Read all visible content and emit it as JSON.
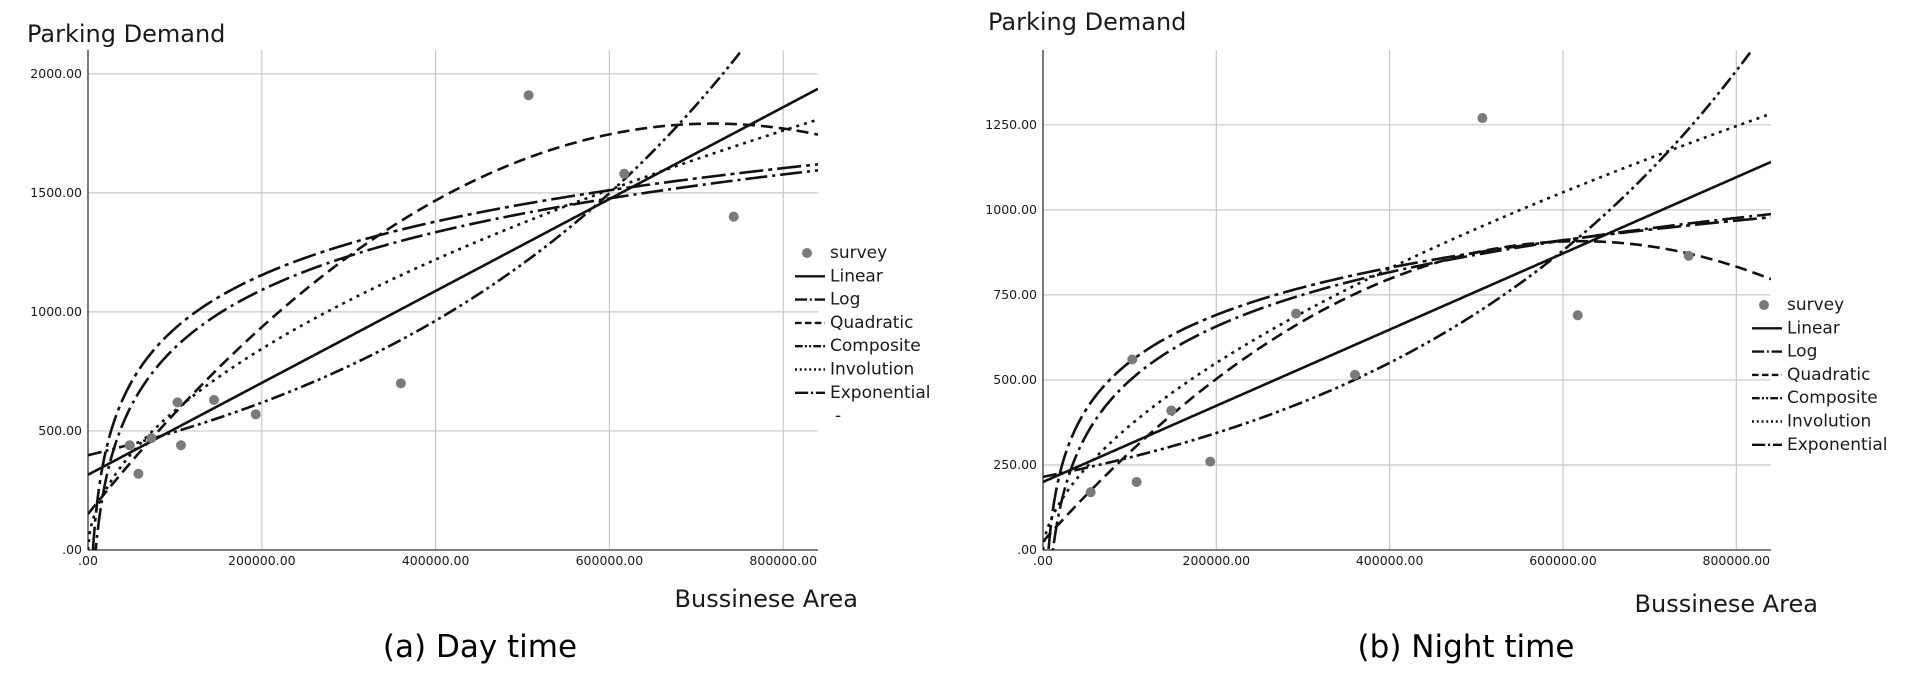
{
  "chart_data": [
    {
      "type": "scatter",
      "caption": "(a) Day time",
      "xlabel": "Bussinese Area",
      "ylabel": "Parking Demand",
      "xlim": [
        0,
        840000
      ],
      "ylim": [
        0,
        2100
      ],
      "xticks": [
        0,
        200000,
        400000,
        600000,
        800000
      ],
      "xtick_labels": [
        ".00",
        "200000.00",
        "400000.00",
        "600000.00",
        "800000.00"
      ],
      "yticks": [
        0,
        500,
        1000,
        1500,
        2000
      ],
      "ytick_labels": [
        ".00",
        "500.00",
        "1000.00",
        "1500.00",
        "2000.00"
      ],
      "grid": true,
      "legend_position": "right",
      "legend_trailing_mark": "-",
      "legend": [
        "survey",
        "Linear",
        "Log",
        "Quadratic",
        "Composite",
        "Involution",
        "Exponential"
      ],
      "survey_points": [
        {
          "x": 48000,
          "y": 440
        },
        {
          "x": 58000,
          "y": 320
        },
        {
          "x": 73000,
          "y": 470
        },
        {
          "x": 103000,
          "y": 620
        },
        {
          "x": 107000,
          "y": 440
        },
        {
          "x": 145000,
          "y": 630
        },
        {
          "x": 193000,
          "y": 570
        },
        {
          "x": 360000,
          "y": 700
        },
        {
          "x": 507000,
          "y": 1910
        },
        {
          "x": 617000,
          "y": 1580
        },
        {
          "x": 743000,
          "y": 1400
        }
      ],
      "fits": {
        "linear": {
          "a": 316,
          "b": 0.00193
        },
        "log": {
          "a": -3180,
          "b": 350
        },
        "quadratic": {
          "a": 151,
          "b": 0.00456,
          "c": -3.17e-09
        },
        "composite": {
          "a": 398,
          "b": 2.21e-06
        },
        "involution": {
          "a": 1.31,
          "b": 0.53
        },
        "exponential": {
          "a": -2800,
          "b": 324
        }
      }
    },
    {
      "type": "scatter",
      "caption": "(b) Night time",
      "xlabel": "Bussinese Area",
      "ylabel": "Parking Demand",
      "xlim": [
        0,
        840000
      ],
      "ylim": [
        0,
        1470
      ],
      "xticks": [
        0,
        200000,
        400000,
        600000,
        800000
      ],
      "xtick_labels": [
        ".00",
        "200000.00",
        "400000.00",
        "600000.00",
        "800000.00"
      ],
      "yticks": [
        0,
        250,
        500,
        750,
        1000,
        1250
      ],
      "ytick_labels": [
        ".00",
        "250.00",
        "500.00",
        "750.00",
        "1000.00",
        "1250.00"
      ],
      "grid": true,
      "legend_position": "right",
      "legend": [
        "survey",
        "Linear",
        "Log",
        "Quadratic",
        "Composite",
        "Involution",
        "Exponential"
      ],
      "survey_points": [
        {
          "x": 55000,
          "y": 170
        },
        {
          "x": 103000,
          "y": 560
        },
        {
          "x": 108000,
          "y": 200
        },
        {
          "x": 148000,
          "y": 410
        },
        {
          "x": 193000,
          "y": 260
        },
        {
          "x": 292000,
          "y": 695
        },
        {
          "x": 360000,
          "y": 515
        },
        {
          "x": 507000,
          "y": 1270
        },
        {
          "x": 617000,
          "y": 690
        },
        {
          "x": 745000,
          "y": 865
        }
      ],
      "fits": {
        "linear": {
          "a": 200,
          "b": 0.00112
        },
        "log": {
          "a": -2150,
          "b": 230
        },
        "quadratic": {
          "a": 25,
          "b": 0.00285,
          "c": -2.3e-09
        },
        "composite": {
          "a": 215,
          "b": 2.35e-06
        },
        "involution": {
          "a": 0.41,
          "b": 0.59
        },
        "exponential": {
          "a": -1750,
          "b": 200
        }
      }
    }
  ]
}
